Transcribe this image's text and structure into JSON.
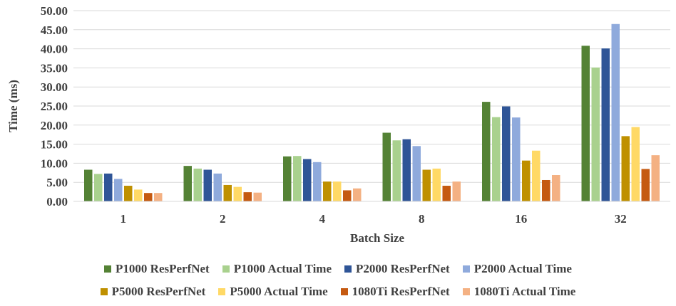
{
  "chart_data": {
    "type": "bar",
    "xlabel": "Batch Size",
    "ylabel": "Time (ms)",
    "ylim": [
      0,
      50
    ],
    "ytick_step": 5,
    "ytick_labels": [
      "0.00",
      "5.00",
      "10.00",
      "15.00",
      "20.00",
      "25.00",
      "30.00",
      "35.00",
      "40.00",
      "45.00",
      "50.00"
    ],
    "grid": true,
    "legend_position": "bottom",
    "categories": [
      "1",
      "2",
      "4",
      "8",
      "16",
      "32"
    ],
    "series": [
      {
        "name": "P1000 ResPerfNet",
        "color": "#548235",
        "values": [
          8.3,
          9.3,
          11.8,
          18.0,
          26.1,
          40.8
        ]
      },
      {
        "name": "P1000 Actual Time",
        "color": "#A9D18E",
        "values": [
          7.2,
          8.6,
          11.9,
          16.0,
          22.1,
          35.1
        ]
      },
      {
        "name": "P2000 ResPerfNet",
        "color": "#2F5597",
        "values": [
          7.3,
          8.3,
          11.1,
          16.3,
          24.9,
          40.1
        ]
      },
      {
        "name": "P2000 Actual Time",
        "color": "#8FAADC",
        "values": [
          5.9,
          7.3,
          10.3,
          14.5,
          22.0,
          46.5
        ]
      },
      {
        "name": "P5000 ResPerfNet",
        "color": "#BF9000",
        "values": [
          4.1,
          4.3,
          5.2,
          8.3,
          10.7,
          17.1
        ]
      },
      {
        "name": "P5000 Actual Time",
        "color": "#FFD966",
        "values": [
          3.1,
          3.8,
          5.2,
          8.6,
          13.3,
          19.5
        ]
      },
      {
        "name": "1080Ti ResPerfNet",
        "color": "#C55A11",
        "values": [
          2.2,
          2.4,
          2.9,
          4.1,
          5.6,
          8.5
        ]
      },
      {
        "name": "1080Ti Actual Time",
        "color": "#F4B183",
        "values": [
          2.2,
          2.3,
          3.4,
          5.2,
          6.9,
          12.1
        ]
      }
    ]
  }
}
